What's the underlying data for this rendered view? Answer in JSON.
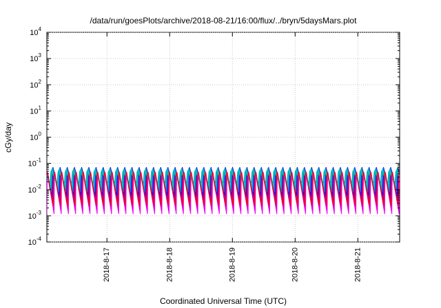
{
  "chart_data": {
    "type": "line",
    "title": "/data/run/goesPlots/archive/2018-08-21/16:00/flux/../bryn/5daysMars.plot",
    "xlabel": "Coordinated Universal Time (UTC)",
    "ylabel": "cGy/day",
    "scale_y": "log",
    "grid": true,
    "legend": "none",
    "x_range": [
      "2018-08-16T01:00:00Z",
      "2018-08-21T16:00:00Z"
    ],
    "x_ticks": [
      "2018-8-17",
      "2018-8-18",
      "2018-8-19",
      "2018-8-20",
      "2018-8-21"
    ],
    "y_ticks": [
      {
        "base": "10",
        "exp": "-4"
      },
      {
        "base": "10",
        "exp": "-3"
      },
      {
        "base": "10",
        "exp": "-2"
      },
      {
        "base": "10",
        "exp": "-1"
      },
      {
        "base": "10",
        "exp": "0"
      },
      {
        "base": "10",
        "exp": "1"
      },
      {
        "base": "10",
        "exp": "2"
      },
      {
        "base": "10",
        "exp": "3"
      },
      {
        "base": "10",
        "exp": "4"
      }
    ],
    "ylim": [
      0.0001,
      10000
    ],
    "series": [
      {
        "color": "#ff00ff",
        "peak": 0.045,
        "trough": 0.0012,
        "period_hours": 2.75,
        "phase_hours": 0.0
      },
      {
        "color": "#e000e0",
        "peak": 0.04,
        "trough": 0.0016,
        "period_hours": 2.75,
        "phase_hours": 0.15
      },
      {
        "color": "#cc00cc",
        "peak": 0.05,
        "trough": 0.0022,
        "period_hours": 2.75,
        "phase_hours": 0.3
      },
      {
        "color": "#9900bb",
        "peak": 0.055,
        "trough": 0.003,
        "period_hours": 2.75,
        "phase_hours": 0.45
      },
      {
        "color": "#8000ff",
        "peak": 0.06,
        "trough": 0.0045,
        "period_hours": 2.75,
        "phase_hours": 0.6
      },
      {
        "color": "#0000ff",
        "peak": 0.07,
        "trough": 0.006,
        "period_hours": 2.75,
        "phase_hours": 0.75
      },
      {
        "color": "#1f6fd0",
        "peak": 0.068,
        "trough": 0.008,
        "period_hours": 2.75,
        "phase_hours": 0.9
      },
      {
        "color": "#0099cc",
        "peak": 0.065,
        "trough": 0.01,
        "period_hours": 2.75,
        "phase_hours": 1.05
      },
      {
        "color": "#00bfbf",
        "peak": 0.06,
        "trough": 0.012,
        "period_hours": 2.75,
        "phase_hours": 1.2
      },
      {
        "color": "#00cccc",
        "peak": 0.055,
        "trough": 0.015,
        "period_hours": 2.75,
        "phase_hours": 1.35
      },
      {
        "color": "#00aaaa",
        "peak": 0.05,
        "trough": 0.018,
        "period_hours": 2.75,
        "phase_hours": 1.5
      },
      {
        "color": "#ff0000",
        "peak": 0.048,
        "trough": 0.0025,
        "period_hours": 2.75,
        "phase_hours": 0.25
      }
    ]
  }
}
